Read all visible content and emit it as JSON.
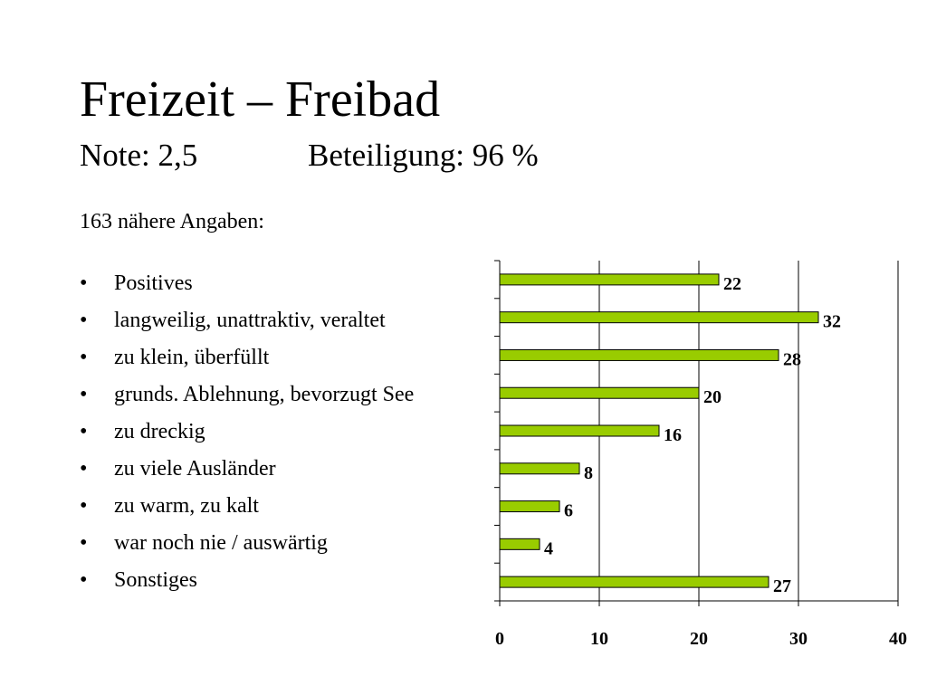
{
  "slide": {
    "title": "Freizeit – Freibad",
    "note": "Note: 2,5",
    "beteiligung": "Beteiligung: 96 %",
    "intro": "163 nähere Angaben:",
    "bullet_glyph": "•"
  },
  "bullets": [
    "Positives",
    "langweilig, unattraktiv, veraltet",
    "zu klein, überfüllt",
    "grunds. Ablehnung, bevorzugt See",
    "zu dreckig",
    "zu viele Ausländer",
    "zu warm, zu kalt",
    "war noch nie / auswärtig",
    "Sonstiges"
  ],
  "chart_data": {
    "type": "bar",
    "orientation": "horizontal",
    "categories": [
      "Positives",
      "langweilig, unattraktiv, veraltet",
      "zu klein, überfüllt",
      "grunds. Ablehnung, bevorzugt See",
      "zu dreckig",
      "zu viele Ausländer",
      "zu warm, zu kalt",
      "war noch nie / auswärtig",
      "Sonstiges"
    ],
    "values": [
      22,
      32,
      28,
      20,
      16,
      8,
      6,
      4,
      27
    ],
    "xlim": [
      0,
      40
    ],
    "xticks": [
      0,
      10,
      20,
      30,
      40
    ],
    "grid": "vertical",
    "data_labels": true,
    "colors": {
      "bar_fill": "#99cc00",
      "bar_stroke": "#000000",
      "axis": "#000000"
    }
  }
}
